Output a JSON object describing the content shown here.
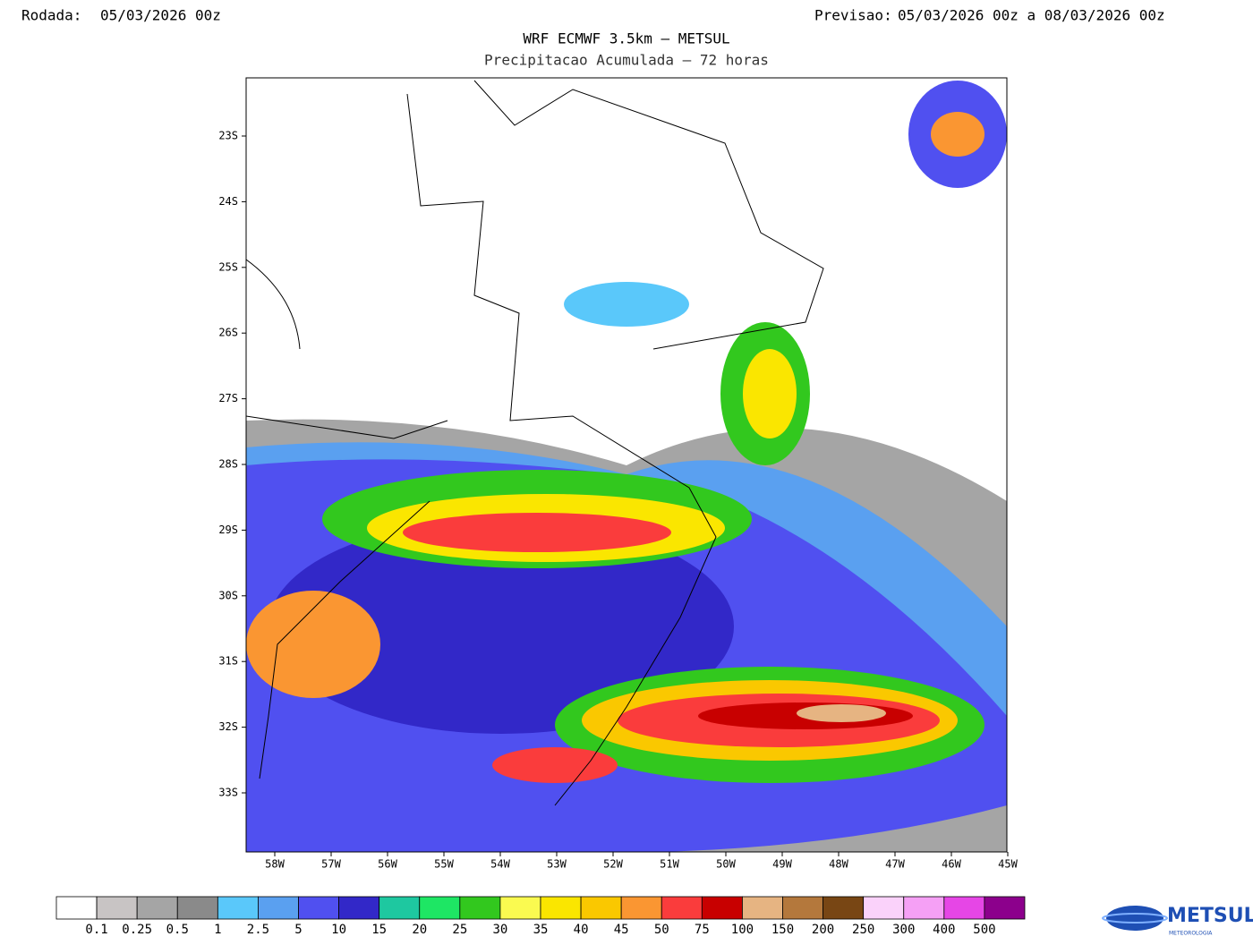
{
  "header": {
    "run_label": "Rodada:",
    "run": "05/03/2026 00z",
    "forecast_label": "Previsao:",
    "forecast": "05/03/2026 00z a 08/03/2026 00z",
    "title": "WRF ECMWF 3.5km — METSUL",
    "subtitle": "Precipitacao Acumulada — 72 horas"
  },
  "map": {
    "lat_labels": [
      "23S",
      "24S",
      "25S",
      "26S",
      "27S",
      "28S",
      "29S",
      "30S",
      "31S",
      "32S",
      "33S"
    ],
    "lon_labels": [
      "58W",
      "57W",
      "56W",
      "55W",
      "54W",
      "53W",
      "52W",
      "51W",
      "50W",
      "49W",
      "48W",
      "47W",
      "46W",
      "45W"
    ]
  },
  "legend": {
    "colors": [
      "#ffffff",
      "#c8c4c4",
      "#a5a5a5",
      "#8a8a8a",
      "#5ac8fa",
      "#5aa0f0",
      "#5050f0",
      "#3228c8",
      "#1ec8a0",
      "#1ee664",
      "#32c81e",
      "#fafa50",
      "#fae600",
      "#fac800",
      "#fa9632",
      "#fa3c3c",
      "#c80000",
      "#e6b482",
      "#b4783c",
      "#784614",
      "#fad2fa",
      "#f5a0f5",
      "#e646e6",
      "#8c008c"
    ],
    "labels": [
      "0.1",
      "0.25",
      "0.5",
      "1",
      "2.5",
      "5",
      "10",
      "15",
      "20",
      "25",
      "30",
      "35",
      "40",
      "45",
      "50",
      "75",
      "100",
      "150",
      "200",
      "250",
      "300",
      "400",
      "500"
    ]
  },
  "logo": {
    "name": "METSUL",
    "tagline": "METEOROLOGIA"
  }
}
